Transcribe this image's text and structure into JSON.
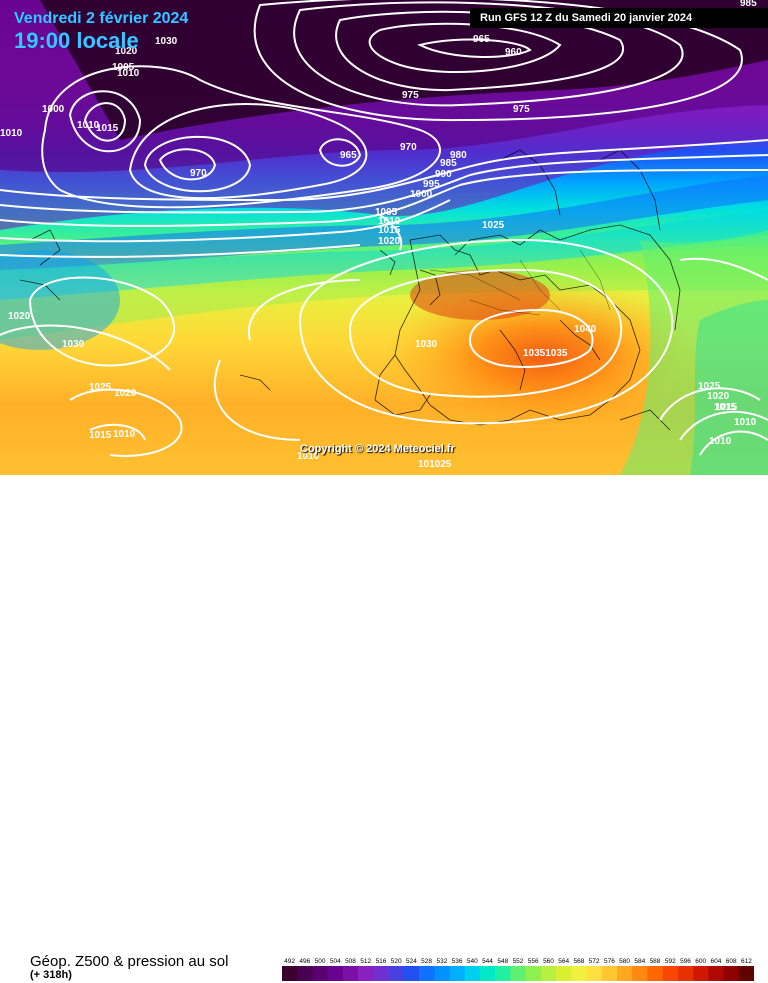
{
  "header": {
    "date": "Vendredi 2 février 2024",
    "local_time": "19:00 locale",
    "run": "Run GFS 12 Z du Samedi 20 janvier 2024"
  },
  "footer": {
    "title": "Géop. Z500 & pression au sol",
    "lead": "(+ 318h)",
    "copyright": "Copyright © 2024 Meteociel.fr"
  },
  "scale": {
    "values": [
      "492",
      "496",
      "500",
      "504",
      "508",
      "512",
      "516",
      "520",
      "524",
      "528",
      "532",
      "536",
      "540",
      "544",
      "548",
      "552",
      "556",
      "560",
      "564",
      "568",
      "572",
      "576",
      "580",
      "584",
      "588",
      "592",
      "596",
      "600",
      "604",
      "608",
      "612"
    ],
    "colors": [
      "#3a0030",
      "#4a0050",
      "#5a0070",
      "#6a0090",
      "#7a10a8",
      "#8a20c0",
      "#7030d0",
      "#4840e0",
      "#2050f0",
      "#1070ff",
      "#0090ff",
      "#00b0ff",
      "#00d0f0",
      "#00e8c8",
      "#20f0a0",
      "#60f070",
      "#90f050",
      "#b8f040",
      "#d8f030",
      "#f0f040",
      "#ffe040",
      "#ffc830",
      "#ffa820",
      "#ff8810",
      "#ff6800",
      "#f84800",
      "#e83000",
      "#d01800",
      "#b00800",
      "#900000",
      "#600000"
    ]
  },
  "isobars": [
    {
      "label": "965",
      "kind": "low"
    },
    {
      "label": "960",
      "kind": "low"
    },
    {
      "label": "975",
      "kind": "low"
    },
    {
      "label": "975",
      "kind": "low"
    },
    {
      "label": "980",
      "kind": "low"
    },
    {
      "label": "965",
      "kind": "low"
    },
    {
      "label": "970",
      "kind": "low"
    },
    {
      "label": "970",
      "kind": "low"
    },
    {
      "label": "1000",
      "kind": "mid"
    },
    {
      "label": "1010",
      "kind": "mid"
    },
    {
      "label": "1030",
      "kind": "high"
    },
    {
      "label": "1010",
      "kind": "mid"
    },
    {
      "label": "1005",
      "kind": "mid"
    },
    {
      "label": "1015",
      "kind": "mid"
    },
    {
      "label": "1005",
      "kind": "mid"
    },
    {
      "label": "1010",
      "kind": "mid"
    },
    {
      "label": "1015",
      "kind": "mid"
    },
    {
      "label": "1020",
      "kind": "mid"
    },
    {
      "label": "985",
      "kind": "low"
    },
    {
      "label": "990",
      "kind": "low"
    },
    {
      "label": "995",
      "kind": "low"
    },
    {
      "label": "1000",
      "kind": "mid"
    },
    {
      "label": "1025",
      "kind": "high"
    },
    {
      "label": "1020",
      "kind": "mid"
    },
    {
      "label": "1030",
      "kind": "high"
    },
    {
      "label": "1030",
      "kind": "high"
    },
    {
      "label": "1040",
      "kind": "high"
    },
    {
      "label": "10351035",
      "kind": "high"
    },
    {
      "label": "1025",
      "kind": "high"
    },
    {
      "label": "1020",
      "kind": "mid"
    },
    {
      "label": "1015",
      "kind": "mid"
    },
    {
      "label": "1010",
      "kind": "mid"
    },
    {
      "label": "1015",
      "kind": "mid"
    },
    {
      "label": "1010",
      "kind": "mid"
    },
    {
      "label": "1025",
      "kind": "high"
    },
    {
      "label": "1020",
      "kind": "mid"
    },
    {
      "label": "1015",
      "kind": "mid"
    },
    {
      "label": "1010",
      "kind": "mid"
    },
    {
      "label": "1010",
      "kind": "mid"
    },
    {
      "label": "101025",
      "kind": "high"
    },
    {
      "label": "1010",
      "kind": "mid"
    },
    {
      "label": "1020",
      "kind": "mid"
    },
    {
      "label": "985",
      "kind": "low"
    }
  ]
}
